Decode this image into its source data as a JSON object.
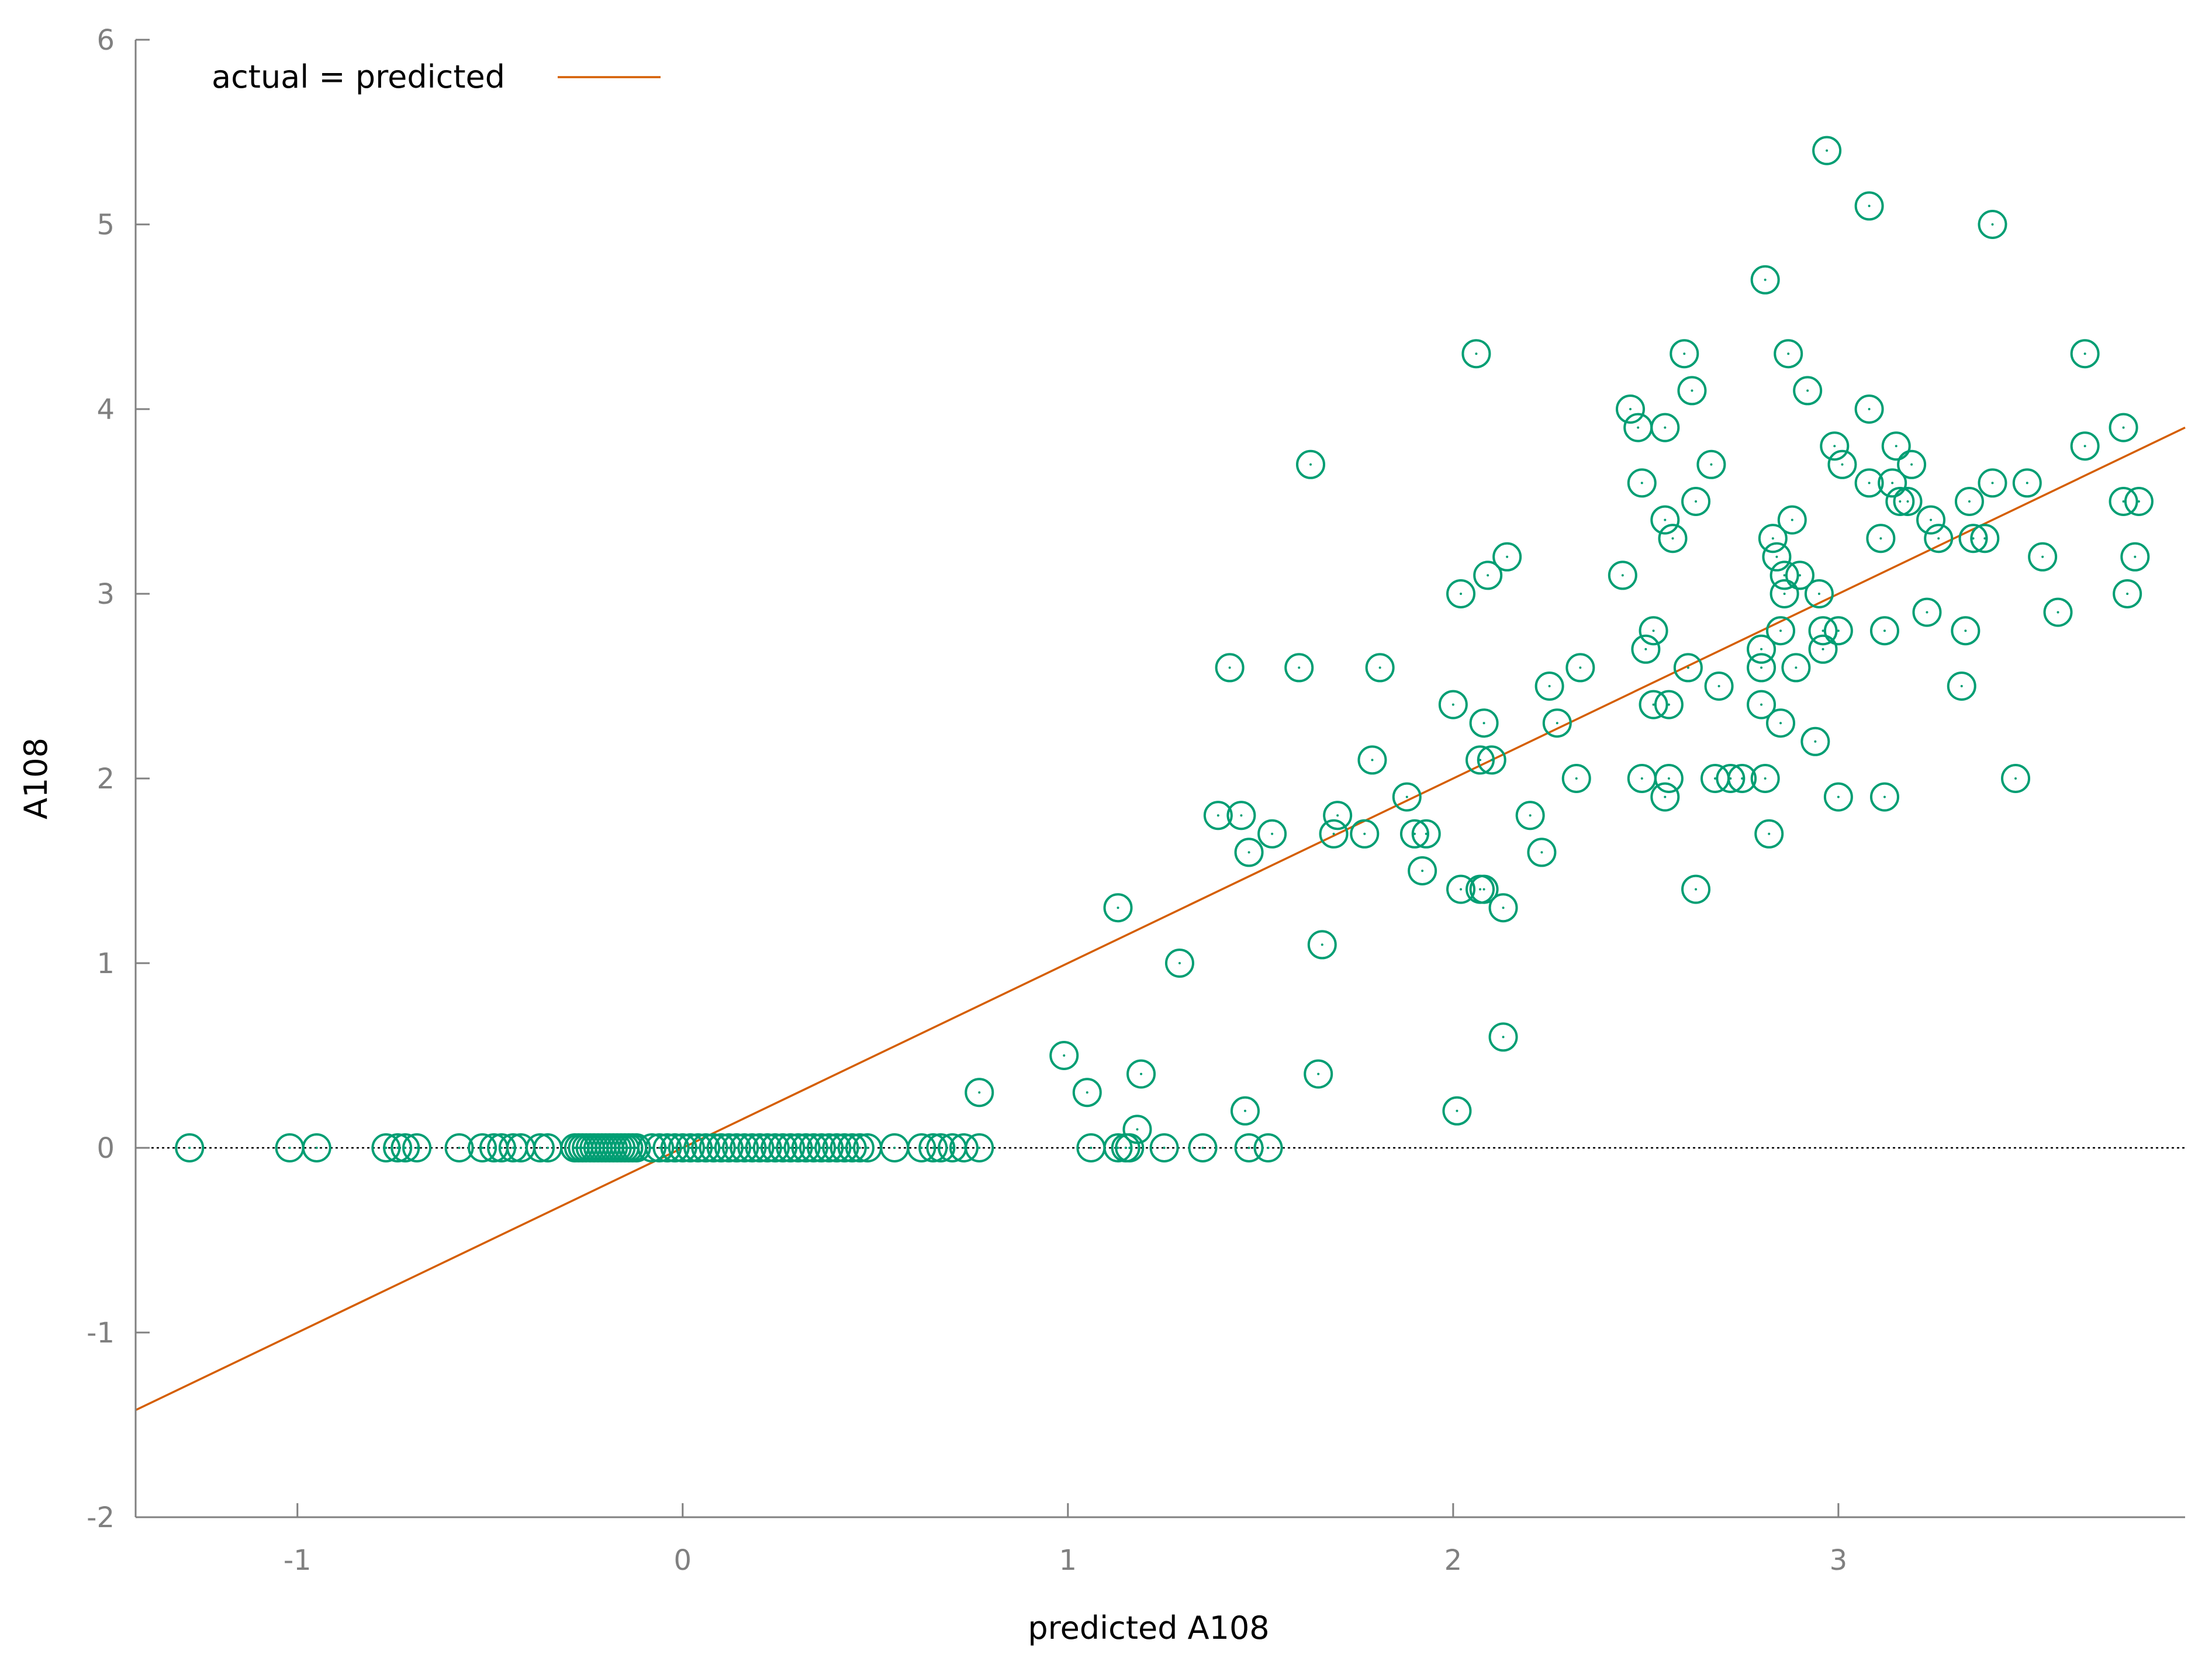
{
  "chart_data": {
    "type": "scatter",
    "xlabel": "predicted A108",
    "ylabel": "A108",
    "xlim": [
      -1.42,
      3.9
    ],
    "ylim": [
      -2,
      6
    ],
    "x_ticks": [
      {
        "value": -1,
        "label": "-1"
      },
      {
        "value": 0,
        "label": "0"
      },
      {
        "value": 1,
        "label": "1"
      },
      {
        "value": 2,
        "label": "2"
      },
      {
        "value": 3,
        "label": "3"
      }
    ],
    "y_ticks": [
      {
        "value": -2,
        "label": "-2"
      },
      {
        "value": -1,
        "label": "-1"
      },
      {
        "value": 0,
        "label": "0"
      },
      {
        "value": 1,
        "label": "1"
      },
      {
        "value": 2,
        "label": "2"
      },
      {
        "value": 3,
        "label": "3"
      },
      {
        "value": 4,
        "label": "4"
      },
      {
        "value": 5,
        "label": "5"
      },
      {
        "value": 6,
        "label": "6"
      }
    ],
    "grid": false,
    "zero_line": true,
    "legend": {
      "position": "top-left",
      "entries": [
        {
          "label": "actual = predicted",
          "color": "#d55e00",
          "marker": "line"
        }
      ]
    },
    "reference_line": {
      "label": "actual = predicted",
      "slope": 1,
      "intercept": 0,
      "color": "#d55e00"
    },
    "series": [
      {
        "marker": "open-circle",
        "color": "#009e73",
        "points": [
          [
            -1.28,
            0
          ],
          [
            -1.02,
            0
          ],
          [
            -0.95,
            0
          ],
          [
            -0.77,
            0
          ],
          [
            -0.74,
            0
          ],
          [
            -0.72,
            0
          ],
          [
            -0.69,
            0
          ],
          [
            -0.58,
            0
          ],
          [
            -0.52,
            0
          ],
          [
            -0.49,
            0
          ],
          [
            -0.47,
            0
          ],
          [
            -0.44,
            0
          ],
          [
            -0.42,
            0
          ],
          [
            -0.37,
            0
          ],
          [
            -0.35,
            0
          ],
          [
            -0.28,
            0
          ],
          [
            -0.27,
            0
          ],
          [
            -0.26,
            0
          ],
          [
            -0.25,
            0
          ],
          [
            -0.24,
            0
          ],
          [
            -0.23,
            0
          ],
          [
            -0.22,
            0
          ],
          [
            -0.21,
            0
          ],
          [
            -0.2,
            0
          ],
          [
            -0.19,
            0
          ],
          [
            -0.18,
            0
          ],
          [
            -0.17,
            0
          ],
          [
            -0.16,
            0
          ],
          [
            -0.15,
            0
          ],
          [
            -0.14,
            0
          ],
          [
            -0.13,
            0
          ],
          [
            -0.12,
            0
          ],
          [
            -0.08,
            0
          ],
          [
            -0.06,
            0
          ],
          [
            -0.04,
            0
          ],
          [
            -0.02,
            0
          ],
          [
            0,
            0
          ],
          [
            0.02,
            0
          ],
          [
            0.04,
            0
          ],
          [
            0.06,
            0
          ],
          [
            0.08,
            0
          ],
          [
            0.1,
            0
          ],
          [
            0.12,
            0
          ],
          [
            0.14,
            0
          ],
          [
            0.16,
            0
          ],
          [
            0.18,
            0
          ],
          [
            0.2,
            0
          ],
          [
            0.22,
            0
          ],
          [
            0.24,
            0
          ],
          [
            0.26,
            0
          ],
          [
            0.28,
            0
          ],
          [
            0.3,
            0
          ],
          [
            0.32,
            0
          ],
          [
            0.34,
            0
          ],
          [
            0.36,
            0
          ],
          [
            0.38,
            0
          ],
          [
            0.4,
            0
          ],
          [
            0.42,
            0
          ],
          [
            0.44,
            0
          ],
          [
            0.46,
            0
          ],
          [
            0.48,
            0
          ],
          [
            0.55,
            0
          ],
          [
            0.62,
            0
          ],
          [
            0.65,
            0
          ],
          [
            0.67,
            0
          ],
          [
            0.7,
            0
          ],
          [
            0.73,
            0
          ],
          [
            0.77,
            0
          ],
          [
            0.77,
            0.3
          ],
          [
            0.99,
            0.5
          ],
          [
            1.05,
            0.3
          ],
          [
            1.06,
            0
          ],
          [
            1.13,
            0
          ],
          [
            1.15,
            0
          ],
          [
            1.16,
            0
          ],
          [
            1.18,
            0.1
          ],
          [
            1.19,
            0.4
          ],
          [
            1.25,
            0
          ],
          [
            1.35,
            0
          ],
          [
            1.46,
            0.2
          ],
          [
            1.47,
            0
          ],
          [
            1.52,
            0
          ],
          [
            1.65,
            0.4
          ],
          [
            2.01,
            0.2
          ],
          [
            2.13,
            0.6
          ],
          [
            1.13,
            1.3
          ],
          [
            1.29,
            1.0
          ],
          [
            1.66,
            1.1
          ],
          [
            1.39,
            1.8
          ],
          [
            1.45,
            1.8
          ],
          [
            1.47,
            1.6
          ],
          [
            1.53,
            1.7
          ],
          [
            1.69,
            1.7
          ],
          [
            1.7,
            1.8
          ],
          [
            1.77,
            1.7
          ],
          [
            1.79,
            2.1
          ],
          [
            1.88,
            1.9
          ],
          [
            1.9,
            1.7
          ],
          [
            1.93,
            1.7
          ],
          [
            1.92,
            1.5
          ],
          [
            2.02,
            1.4
          ],
          [
            2.07,
            1.4
          ],
          [
            2.08,
            1.4
          ],
          [
            2.13,
            1.3
          ],
          [
            2.07,
            2.1
          ],
          [
            2.1,
            2.1
          ],
          [
            2.08,
            2.3
          ],
          [
            2.0,
            2.4
          ],
          [
            2.2,
            1.8
          ],
          [
            2.23,
            1.6
          ],
          [
            2.25,
            2.5
          ],
          [
            2.27,
            2.3
          ],
          [
            2.32,
            2.0
          ],
          [
            2.33,
            2.6
          ],
          [
            1.42,
            2.6
          ],
          [
            1.6,
            2.6
          ],
          [
            1.81,
            2.6
          ],
          [
            1.63,
            3.7
          ],
          [
            2.02,
            3.0
          ],
          [
            2.09,
            3.1
          ],
          [
            2.14,
            3.2
          ],
          [
            2.06,
            4.3
          ],
          [
            2.44,
            3.1
          ],
          [
            2.5,
            2.7
          ],
          [
            2.52,
            2.8
          ],
          [
            2.52,
            2.4
          ],
          [
            2.56,
            2.4
          ],
          [
            2.49,
            2.0
          ],
          [
            2.56,
            2.0
          ],
          [
            2.55,
            1.9
          ],
          [
            2.61,
            2.6
          ],
          [
            2.63,
            1.4
          ],
          [
            2.68,
            2.0
          ],
          [
            2.69,
            2.5
          ],
          [
            2.72,
            2.0
          ],
          [
            2.75,
            2.0
          ],
          [
            2.8,
            2.7
          ],
          [
            2.8,
            2.6
          ],
          [
            2.8,
            2.4
          ],
          [
            2.81,
            2.0
          ],
          [
            2.82,
            1.7
          ],
          [
            2.85,
            2.3
          ],
          [
            2.85,
            2.8
          ],
          [
            2.86,
            3.0
          ],
          [
            2.86,
            3.1
          ],
          [
            2.89,
            2.6
          ],
          [
            2.9,
            3.1
          ],
          [
            2.94,
            2.2
          ],
          [
            2.95,
            3.0
          ],
          [
            2.96,
            2.8
          ],
          [
            2.96,
            2.7
          ],
          [
            3.0,
            1.9
          ],
          [
            3.0,
            2.8
          ],
          [
            3.12,
            1.9
          ],
          [
            3.12,
            2.8
          ],
          [
            3.23,
            2.9
          ],
          [
            3.32,
            2.5
          ],
          [
            3.33,
            2.8
          ],
          [
            3.46,
            2.0
          ],
          [
            3.57,
            2.9
          ],
          [
            2.84,
            3.2
          ],
          [
            2.83,
            3.3
          ],
          [
            2.88,
            3.4
          ],
          [
            2.49,
            3.6
          ],
          [
            2.55,
            3.4
          ],
          [
            2.57,
            3.3
          ],
          [
            2.63,
            3.5
          ],
          [
            2.67,
            3.7
          ],
          [
            2.46,
            4.0
          ],
          [
            2.48,
            3.9
          ],
          [
            2.55,
            3.9
          ],
          [
            2.6,
            4.3
          ],
          [
            2.62,
            4.1
          ],
          [
            2.81,
            4.7
          ],
          [
            2.87,
            4.3
          ],
          [
            2.92,
            4.1
          ],
          [
            2.97,
            5.4
          ],
          [
            2.99,
            3.8
          ],
          [
            3.01,
            3.7
          ],
          [
            3.08,
            3.6
          ],
          [
            3.08,
            4.0
          ],
          [
            3.08,
            5.1
          ],
          [
            3.11,
            3.3
          ],
          [
            3.14,
            3.6
          ],
          [
            3.15,
            3.8
          ],
          [
            3.16,
            3.5
          ],
          [
            3.18,
            3.5
          ],
          [
            3.19,
            3.7
          ],
          [
            3.24,
            3.4
          ],
          [
            3.26,
            3.3
          ],
          [
            3.34,
            3.5
          ],
          [
            3.35,
            3.3
          ],
          [
            3.38,
            3.3
          ],
          [
            3.4,
            3.6
          ],
          [
            3.4,
            5.0
          ],
          [
            3.49,
            3.6
          ],
          [
            3.53,
            3.2
          ],
          [
            3.64,
            4.3
          ],
          [
            3.64,
            3.8
          ],
          [
            3.74,
            3.9
          ],
          [
            3.74,
            3.5
          ],
          [
            3.75,
            3.0
          ],
          [
            3.77,
            3.2
          ],
          [
            3.78,
            3.5
          ]
        ]
      }
    ]
  }
}
